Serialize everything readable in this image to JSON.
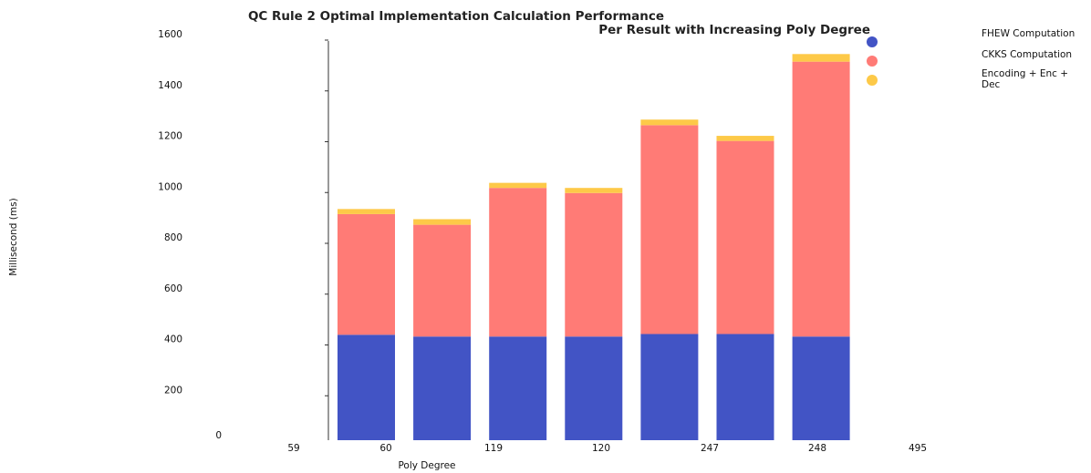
{
  "chart_data": {
    "type": "bar",
    "stacked": true,
    "title_line1": "QC Rule 2 Optimal Implementation Calculation Performance",
    "title_line2": "Per Result with Increasing Poly Degree",
    "xlabel": "Poly Degree",
    "ylabel": "Millisecond (ms)",
    "ylim": [
      0,
      1600
    ],
    "y_ticks": [
      "0",
      "200",
      "400",
      "600",
      "800",
      "1000",
      "1200",
      "1400",
      "1600"
    ],
    "x_tick_labels": [
      "59",
      "60",
      "119",
      "120",
      "247",
      "248",
      "495"
    ],
    "categories": [
      "60",
      "",
      "120",
      "",
      "248",
      "",
      ""
    ],
    "series": [
      {
        "name": "FHEW Computation",
        "color": "#4254c5",
        "values": [
          415,
          408,
          408,
          408,
          418,
          418,
          408
        ]
      },
      {
        "name": "CKKS Computation",
        "color": "#ff7b76",
        "values": [
          475,
          440,
          585,
          565,
          822,
          760,
          1082
        ]
      },
      {
        "name": "Encoding + Enc + Dec",
        "color": "#fdc948",
        "values": [
          20,
          22,
          20,
          20,
          22,
          20,
          30
        ]
      }
    ],
    "legend": {
      "position": "top-right",
      "entries": [
        "FHEW Computation",
        "CKKS Computation",
        "Encoding + Enc + Dec"
      ]
    },
    "grid": false
  }
}
